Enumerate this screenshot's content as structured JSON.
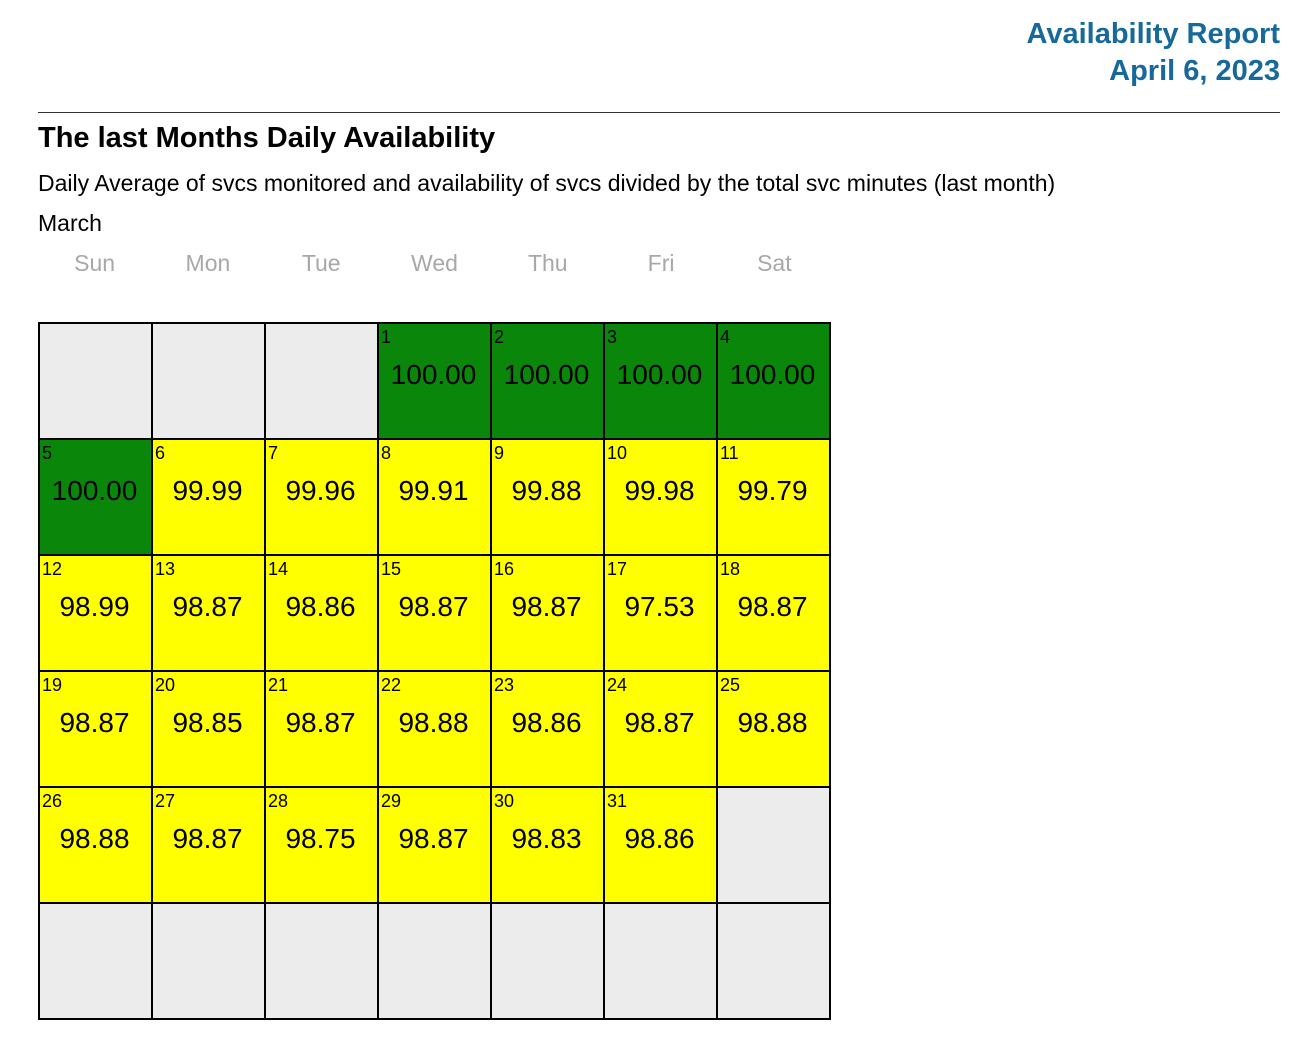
{
  "header": {
    "title": "Availability Report",
    "date": "April 6, 2023"
  },
  "section": {
    "title": "The last Months Daily Availability",
    "subtitle": "Daily Average of svcs monitored and availability of svcs divided by the total svc minutes (last month)",
    "month": "March"
  },
  "colors": {
    "accent_blue": "#17699c",
    "green_full": "#0a870a",
    "yellow_degraded": "#ffff00",
    "gray_empty": "#ececec",
    "grid_line": "#000000",
    "weekday_gray": "#a8a8a8"
  },
  "calendar": {
    "weekday_headers": [
      "Sun",
      "Mon",
      "Tue",
      "Wed",
      "Thu",
      "Fri",
      "Sat"
    ],
    "weeks": [
      [
        null,
        null,
        null,
        {
          "day": 1,
          "value": "100.00",
          "status": "full"
        },
        {
          "day": 2,
          "value": "100.00",
          "status": "full"
        },
        {
          "day": 3,
          "value": "100.00",
          "status": "full"
        },
        {
          "day": 4,
          "value": "100.00",
          "status": "full"
        }
      ],
      [
        {
          "day": 5,
          "value": "100.00",
          "status": "full"
        },
        {
          "day": 6,
          "value": "99.99",
          "status": "degraded"
        },
        {
          "day": 7,
          "value": "99.96",
          "status": "degraded"
        },
        {
          "day": 8,
          "value": "99.91",
          "status": "degraded"
        },
        {
          "day": 9,
          "value": "99.88",
          "status": "degraded"
        },
        {
          "day": 10,
          "value": "99.98",
          "status": "degraded"
        },
        {
          "day": 11,
          "value": "99.79",
          "status": "degraded"
        }
      ],
      [
        {
          "day": 12,
          "value": "98.99",
          "status": "degraded"
        },
        {
          "day": 13,
          "value": "98.87",
          "status": "degraded"
        },
        {
          "day": 14,
          "value": "98.86",
          "status": "degraded"
        },
        {
          "day": 15,
          "value": "98.87",
          "status": "degraded"
        },
        {
          "day": 16,
          "value": "98.87",
          "status": "degraded"
        },
        {
          "day": 17,
          "value": "97.53",
          "status": "degraded"
        },
        {
          "day": 18,
          "value": "98.87",
          "status": "degraded"
        }
      ],
      [
        {
          "day": 19,
          "value": "98.87",
          "status": "degraded"
        },
        {
          "day": 20,
          "value": "98.85",
          "status": "degraded"
        },
        {
          "day": 21,
          "value": "98.87",
          "status": "degraded"
        },
        {
          "day": 22,
          "value": "98.88",
          "status": "degraded"
        },
        {
          "day": 23,
          "value": "98.86",
          "status": "degraded"
        },
        {
          "day": 24,
          "value": "98.87",
          "status": "degraded"
        },
        {
          "day": 25,
          "value": "98.88",
          "status": "degraded"
        }
      ],
      [
        {
          "day": 26,
          "value": "98.88",
          "status": "degraded"
        },
        {
          "day": 27,
          "value": "98.87",
          "status": "degraded"
        },
        {
          "day": 28,
          "value": "98.75",
          "status": "degraded"
        },
        {
          "day": 29,
          "value": "98.87",
          "status": "degraded"
        },
        {
          "day": 30,
          "value": "98.83",
          "status": "degraded"
        },
        {
          "day": 31,
          "value": "98.86",
          "status": "degraded"
        },
        null
      ],
      [
        null,
        null,
        null,
        null,
        null,
        null,
        null
      ]
    ]
  }
}
